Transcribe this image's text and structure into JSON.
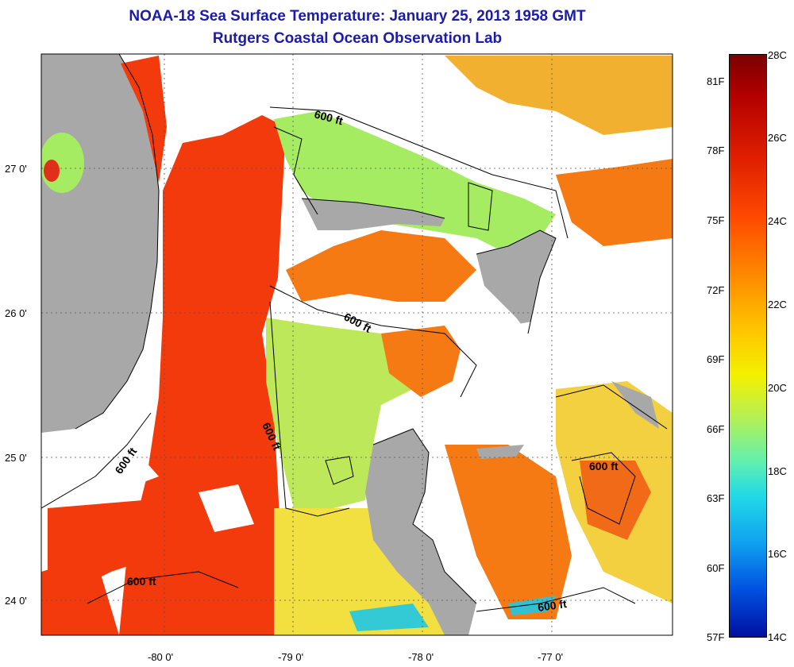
{
  "title": {
    "line1": "NOAA-18 Sea Surface Temperature:  January 25, 2013 1958 GMT",
    "line2": "Rutgers Coastal Ocean Observation Lab"
  },
  "map": {
    "lon_labels": [
      "-80 0'",
      "-79 0'",
      "-78 0'",
      "-77 0'"
    ],
    "lat_labels": [
      "27 0'",
      "26 0'",
      "25 0'",
      "24 0'"
    ],
    "contour_label": "600 ft"
  },
  "colorbar": {
    "fahrenheit": [
      "81F",
      "78F",
      "75F",
      "72F",
      "69F",
      "66F",
      "63F",
      "60F",
      "57F"
    ],
    "celsius": [
      "28C",
      "26C",
      "24C",
      "22C",
      "20C",
      "18C",
      "16C",
      "14C"
    ]
  },
  "colors": {
    "land": "#a8a8a8",
    "cloud": "#ffffff",
    "warm": "#f23a0c",
    "orange": "#f57a14",
    "yellow": "#f2e040",
    "green": "#a6ec62",
    "cyan": "#1ec8e6"
  }
}
